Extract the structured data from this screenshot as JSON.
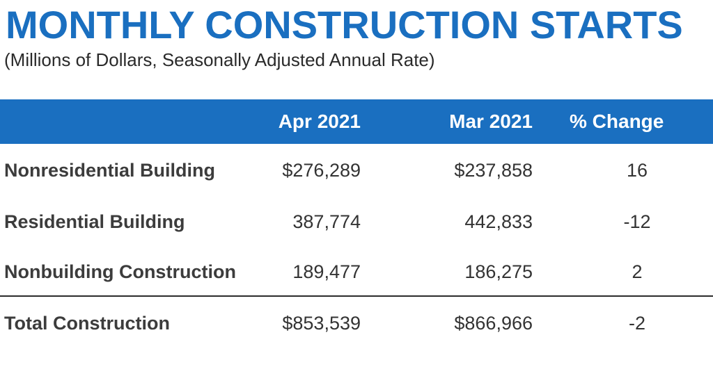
{
  "title": "MONTHLY CONSTRUCTION STARTS",
  "subtitle": "(Millions of Dollars, Seasonally Adjusted Annual Rate)",
  "columns": {
    "label": "",
    "apr": "Apr 2021",
    "mar": "Mar 2021",
    "change": "% Change"
  },
  "rows": [
    {
      "label": "Nonresidential Building",
      "apr": "$276,289",
      "mar": "$237,858",
      "change": "16"
    },
    {
      "label": "Residential Building",
      "apr": "387,774",
      "mar": "442,833",
      "change": "-12"
    },
    {
      "label": "Nonbuilding Construction",
      "apr": "189,477",
      "mar": "186,275",
      "change": "2"
    },
    {
      "label": "Total Construction",
      "apr": "$853,539",
      "mar": "$866,966",
      "change": "-2"
    }
  ],
  "colors": {
    "accent": "#1a6fc0",
    "header_text": "#ffffff",
    "body_text": "#333333"
  }
}
